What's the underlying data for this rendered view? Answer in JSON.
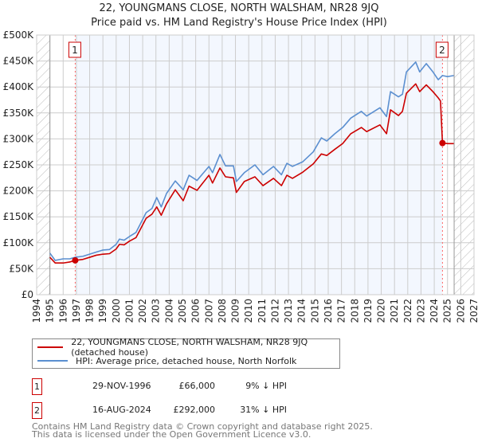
{
  "chart_data": {
    "type": "line",
    "title": "22, YOUNGMANS CLOSE, NORTH WALSHAM, NR28 9JQ",
    "subtitle": "Price paid vs. HM Land Registry's House Price Index (HPI)",
    "xlim": [
      1994,
      2027
    ],
    "ylim": [
      0,
      500000
    ],
    "grid": true,
    "x_ticks": [
      "1994",
      "1995",
      "1996",
      "1997",
      "1998",
      "1999",
      "2000",
      "2001",
      "2002",
      "2003",
      "2004",
      "2005",
      "2006",
      "2007",
      "2008",
      "2009",
      "2010",
      "2011",
      "2012",
      "2013",
      "2014",
      "2015",
      "2016",
      "2017",
      "2018",
      "2019",
      "2020",
      "2021",
      "2022",
      "2023",
      "2024",
      "2025",
      "2026",
      "2027"
    ],
    "y_ticks": [
      {
        "value": 0,
        "label": "£0"
      },
      {
        "value": 50000,
        "label": "£50K"
      },
      {
        "value": 100000,
        "label": "£100K"
      },
      {
        "value": 150000,
        "label": "£150K"
      },
      {
        "value": 200000,
        "label": "£200K"
      },
      {
        "value": 250000,
        "label": "£250K"
      },
      {
        "value": 300000,
        "label": "£300K"
      },
      {
        "value": 350000,
        "label": "£350K"
      },
      {
        "value": 400000,
        "label": "£400K"
      },
      {
        "value": 450000,
        "label": "£450K"
      },
      {
        "value": 500000,
        "label": "£500K"
      }
    ],
    "hatched_before": 1995,
    "hatched_after": 2025.5,
    "series": [
      {
        "name": "22, YOUNGMANS CLOSE, NORTH WALSHAM, NR28 9JQ (detached house)",
        "color": "#cc0000",
        "points": [
          [
            1995.0,
            72000
          ],
          [
            1995.4,
            61000
          ],
          [
            1996.0,
            61000
          ],
          [
            1996.5,
            63000
          ],
          [
            1996.91,
            66000
          ],
          [
            1997.5,
            68000
          ],
          [
            1998.0,
            72000
          ],
          [
            1998.5,
            76000
          ],
          [
            1999.0,
            78000
          ],
          [
            1999.5,
            79000
          ],
          [
            2000.0,
            88000
          ],
          [
            2000.25,
            97000
          ],
          [
            2000.6,
            96000
          ],
          [
            2001.0,
            103000
          ],
          [
            2001.5,
            110000
          ],
          [
            2002.26,
            147000
          ],
          [
            2002.7,
            155000
          ],
          [
            2003.06,
            169000
          ],
          [
            2003.4,
            153000
          ],
          [
            2003.8,
            175000
          ],
          [
            2004.46,
            202000
          ],
          [
            2005.06,
            181000
          ],
          [
            2005.5,
            209000
          ],
          [
            2006.1,
            201000
          ],
          [
            2007.0,
            230000
          ],
          [
            2007.27,
            215000
          ],
          [
            2007.83,
            244000
          ],
          [
            2008.25,
            227000
          ],
          [
            2008.85,
            225000
          ],
          [
            2009.07,
            197000
          ],
          [
            2009.67,
            218000
          ],
          [
            2010.47,
            227000
          ],
          [
            2011.08,
            210000
          ],
          [
            2011.87,
            224000
          ],
          [
            2012.47,
            210000
          ],
          [
            2012.88,
            230000
          ],
          [
            2013.3,
            224000
          ],
          [
            2014.08,
            236000
          ],
          [
            2014.87,
            252000
          ],
          [
            2015.48,
            271000
          ],
          [
            2015.89,
            268000
          ],
          [
            2016.5,
            280000
          ],
          [
            2017.09,
            291000
          ],
          [
            2017.7,
            310000
          ],
          [
            2018.5,
            322000
          ],
          [
            2018.9,
            314000
          ],
          [
            2019.9,
            327000
          ],
          [
            2020.4,
            310000
          ],
          [
            2020.7,
            356000
          ],
          [
            2021.3,
            345000
          ],
          [
            2021.6,
            353000
          ],
          [
            2021.9,
            388000
          ],
          [
            2022.6,
            406000
          ],
          [
            2022.9,
            391000
          ],
          [
            2023.4,
            404000
          ],
          [
            2023.9,
            391000
          ],
          [
            2024.3,
            379000
          ],
          [
            2024.47,
            373000
          ],
          [
            2024.62,
            292000
          ],
          [
            2025.0,
            291000
          ],
          [
            2025.47,
            291000
          ]
        ]
      },
      {
        "name": "HPI: Average price, detached house, North Norfolk",
        "color": "#5b8fd0",
        "points": [
          [
            1995.0,
            80000
          ],
          [
            1995.4,
            66000
          ],
          [
            1996.0,
            69000
          ],
          [
            1996.5,
            69000
          ],
          [
            1996.91,
            72000
          ],
          [
            1997.5,
            74000
          ],
          [
            1998.0,
            78000
          ],
          [
            1998.5,
            82000
          ],
          [
            1999.0,
            86000
          ],
          [
            1999.5,
            87000
          ],
          [
            2000.0,
            97000
          ],
          [
            2000.25,
            107000
          ],
          [
            2000.6,
            105000
          ],
          [
            2001.0,
            112000
          ],
          [
            2001.5,
            120000
          ],
          [
            2002.26,
            158000
          ],
          [
            2002.7,
            166000
          ],
          [
            2003.06,
            187000
          ],
          [
            2003.4,
            169000
          ],
          [
            2003.8,
            195000
          ],
          [
            2004.46,
            219000
          ],
          [
            2005.06,
            202000
          ],
          [
            2005.5,
            230000
          ],
          [
            2006.1,
            220000
          ],
          [
            2007.0,
            247000
          ],
          [
            2007.27,
            235000
          ],
          [
            2007.83,
            270000
          ],
          [
            2008.25,
            248000
          ],
          [
            2008.85,
            248000
          ],
          [
            2009.07,
            218000
          ],
          [
            2009.67,
            235000
          ],
          [
            2010.47,
            250000
          ],
          [
            2011.08,
            231000
          ],
          [
            2011.87,
            247000
          ],
          [
            2012.47,
            231000
          ],
          [
            2012.88,
            253000
          ],
          [
            2013.3,
            247000
          ],
          [
            2014.08,
            256000
          ],
          [
            2014.87,
            275000
          ],
          [
            2015.48,
            302000
          ],
          [
            2015.89,
            296000
          ],
          [
            2016.5,
            310000
          ],
          [
            2017.09,
            322000
          ],
          [
            2017.7,
            340000
          ],
          [
            2018.5,
            353000
          ],
          [
            2018.9,
            344000
          ],
          [
            2019.9,
            360000
          ],
          [
            2020.4,
            343000
          ],
          [
            2020.7,
            391000
          ],
          [
            2021.3,
            381000
          ],
          [
            2021.6,
            386000
          ],
          [
            2021.9,
            429000
          ],
          [
            2022.6,
            448000
          ],
          [
            2022.9,
            429000
          ],
          [
            2023.4,
            445000
          ],
          [
            2023.9,
            429000
          ],
          [
            2024.3,
            414000
          ],
          [
            2024.62,
            422000
          ],
          [
            2025.0,
            420000
          ],
          [
            2025.47,
            422000
          ]
        ]
      }
    ],
    "sales": [
      {
        "id": "1",
        "x": 1996.91,
        "price": 66000
      },
      {
        "id": "2",
        "x": 2024.62,
        "price": 292000
      }
    ]
  },
  "legend": {
    "property": "22, YOUNGMANS CLOSE, NORTH WALSHAM, NR28 9JQ (detached house)",
    "hpi": "HPI: Average price, detached house, North Norfolk"
  },
  "transactions": [
    {
      "id": "1",
      "date": "29-NOV-1996",
      "price": "£66,000",
      "hpi": "9% ↓ HPI"
    },
    {
      "id": "2",
      "date": "16-AUG-2024",
      "price": "£292,000",
      "hpi": "31% ↓ HPI"
    }
  ],
  "footer": {
    "line1": "Contains HM Land Registry data © Crown copyright and database right 2025.",
    "line2": "This data is licensed under the Open Government Licence v3.0."
  }
}
